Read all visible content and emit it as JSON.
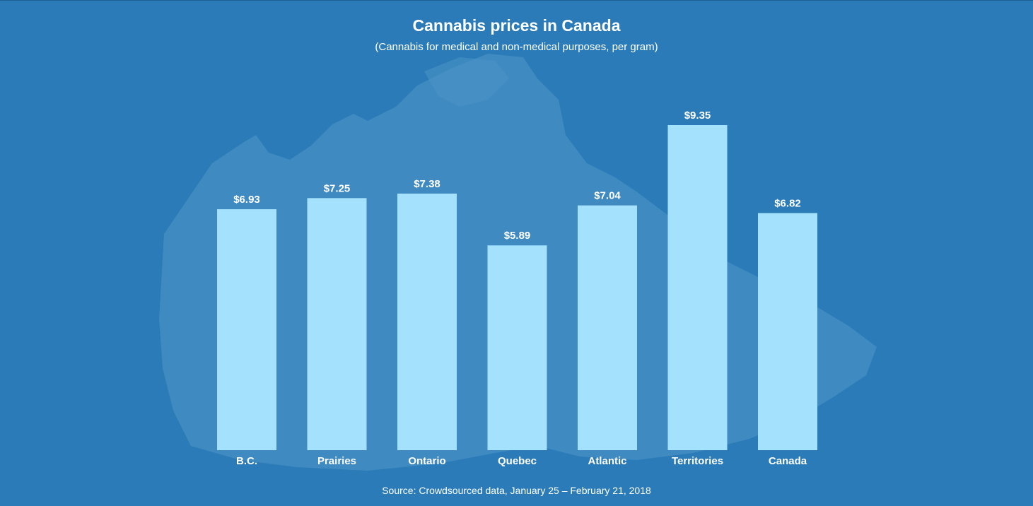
{
  "title": "Cannabis prices in Canada",
  "subtitle": "(Cannabis for medical and non-medical purposes, per gram)",
  "source": "Source: Crowdsourced data, January 25 – February 21, 2018",
  "colors": {
    "background": "#2a7bb7",
    "map": "#4a92c6",
    "bar": "#a4e1fd",
    "text": "#ffffff"
  },
  "chart_data": {
    "type": "bar",
    "categories": [
      "B.C.",
      "Prairies",
      "Ontario",
      "Quebec",
      "Atlantic",
      "Territories",
      "Canada"
    ],
    "values": [
      6.93,
      7.25,
      7.38,
      5.89,
      7.04,
      9.35,
      6.82
    ],
    "data_labels": [
      "$6.93",
      "$7.25",
      "$7.38",
      "$5.89",
      "$7.04",
      "$9.35",
      "$6.82"
    ],
    "ylim": [
      0,
      9.35
    ],
    "grid": false,
    "legend": "none"
  }
}
